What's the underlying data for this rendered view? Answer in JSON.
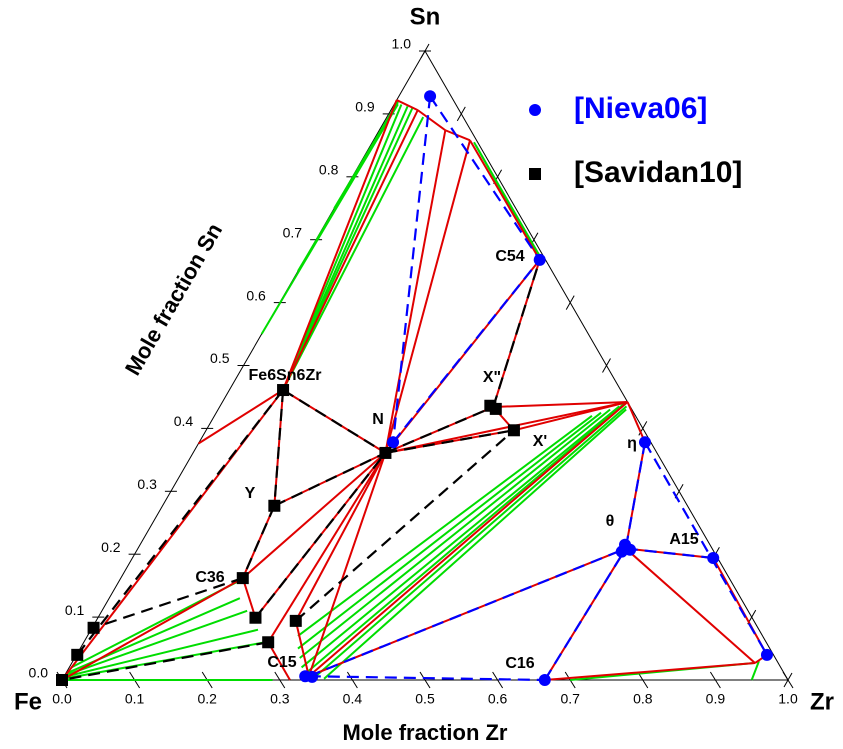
{
  "chart_data": {
    "type": "ternary",
    "corners": {
      "top": "Sn",
      "bottom_left": "Fe",
      "bottom_right": "Zr"
    },
    "xlabel": "Mole fraction Zr",
    "ylabel": "Mole fraction Sn",
    "ticks": [
      {
        "value": 0,
        "label": "0.0"
      },
      0.1,
      0.2,
      0.3,
      0.4,
      0.5,
      0.6,
      0.7,
      0.8,
      0.9,
      {
        "value": 1,
        "label": "1.0"
      }
    ],
    "series": [
      {
        "name": "[Nieva06]",
        "color": "#0000ff",
        "marker": "circle",
        "zr": [
          0.043,
          0.324,
          0.267,
          0.614,
          0.668,
          0.679,
          0.669,
          0.8,
          0.951,
          0.332,
          0.342,
          0.665
        ],
        "sn": [
          0.928,
          0.668,
          0.378,
          0.378,
          0.215,
          0.207,
          0.204,
          0.194,
          0.04,
          0.006,
          0.005,
          0
        ]
      },
      {
        "name": "[Savidan10]",
        "color": "#000000",
        "marker": "square",
        "zr": [
          0.074,
          0.265,
          0.372,
          0.382,
          0.424,
          0.154,
          0.168,
          0.217,
          0.275,
          0.254,
          0.002,
          0.001,
          0
        ],
        "sn": [
          0.461,
          0.361,
          0.436,
          0.431,
          0.397,
          0.277,
          0.162,
          0.099,
          0.094,
          0.06,
          0.083,
          0.04,
          0
        ]
      }
    ],
    "lines": [
      {
        "color": "#00dd00",
        "style": "solid",
        "segments": [
          [
            [
              0.074,
              0.461
            ],
            [
              0.01,
              0.915
            ]
          ],
          [
            [
              0.074,
              0.461
            ],
            [
              0.02,
              0.912
            ]
          ],
          [
            [
              0.074,
              0.461
            ],
            [
              0.028,
              0.909
            ]
          ],
          [
            [
              0.074,
              0.461
            ],
            [
              0.05,
              0.895
            ]
          ],
          [
            [
              0,
              0.55
            ],
            [
              0.005,
              0.915
            ]
          ],
          [
            [
              0,
              0.65
            ],
            [
              0.004,
              0.917
            ]
          ],
          [
            [
              0,
              0.75
            ],
            [
              0.003,
              0.92
            ]
          ],
          [
            [
              0.14,
              0.855
            ],
            [
              0.32,
              0.675
            ]
          ],
          [
            [
              0.145,
              0.85
            ],
            [
              0.323,
              0.67
            ]
          ],
          [
            [
              0.003,
              0.02
            ],
            [
              0.168,
              0.16
            ]
          ],
          [
            [
              0.003,
              0.012
            ],
            [
              0.18,
              0.13
            ]
          ],
          [
            [
              0.002,
              0.008
            ],
            [
              0.2,
              0.11
            ]
          ],
          [
            [
              0.001,
              0.005
            ],
            [
              0.23,
              0.08
            ]
          ],
          [
            [
              0.001,
              0.002
            ],
            [
              0.25,
              0.06
            ]
          ],
          [
            [
              0,
              0
            ],
            [
              0.29,
              0
            ]
          ],
          [
            [
              0.52,
              0.42
            ],
            [
              0.29,
              0.07
            ]
          ],
          [
            [
              0.53,
              0.425
            ],
            [
              0.3,
              0.05
            ]
          ],
          [
            [
              0.54,
              0.43
            ],
            [
              0.31,
              0.035
            ]
          ],
          [
            [
              0.55,
              0.435
            ],
            [
              0.32,
              0.02
            ]
          ],
          [
            [
              0.555,
              0.44
            ],
            [
              0.33,
              0.01
            ]
          ],
          [
            [
              0.56,
              0.435
            ],
            [
              0.345,
              0.003
            ]
          ],
          [
            [
              0.562,
              0.43
            ],
            [
              0.36,
              0.002
            ]
          ],
          [
            [
              0.94,
              0.027
            ],
            [
              0.7,
              0
            ]
          ],
          [
            [
              0.945,
              0.03
            ],
            [
              0.95,
              0
            ]
          ]
        ]
      },
      {
        "color": "#e00000",
        "style": "solid",
        "segments": [
          [
            [
              0.074,
              0.461
            ],
            [
              0.265,
              0.361
            ]
          ],
          [
            [
              0.074,
              0.461
            ],
            [
              0,
              0.376
            ]
          ],
          [
            [
              0.074,
              0.461
            ],
            [
              0.154,
              0.277
            ]
          ],
          [
            [
              0.074,
              0.461
            ],
            [
              0,
              0
            ]
          ],
          [
            [
              0.074,
              0.461
            ],
            [
              0,
              0.922
            ]
          ],
          [
            [
              0.074,
              0.461
            ],
            [
              0.037,
              0.906
            ]
          ],
          [
            [
              0,
              0.922
            ],
            [
              0.037,
              0.906
            ]
          ],
          [
            [
              0.037,
              0.906
            ],
            [
              0.091,
              0.874
            ]
          ],
          [
            [
              0.091,
              0.874
            ],
            [
              0.133,
              0.858
            ]
          ],
          [
            [
              0.091,
              0.874
            ],
            [
              0.265,
              0.361
            ]
          ],
          [
            [
              0.133,
              0.858
            ],
            [
              0.265,
              0.361
            ]
          ],
          [
            [
              0.133,
              0.858
            ],
            [
              0.324,
              0.668
            ]
          ],
          [
            [
              0.324,
              0.668
            ],
            [
              0.265,
              0.361
            ]
          ],
          [
            [
              0.324,
              0.668
            ],
            [
              0.377,
              0.434
            ]
          ],
          [
            [
              0.377,
              0.434
            ],
            [
              0.265,
              0.361
            ]
          ],
          [
            [
              0.377,
              0.434
            ],
            [
              0.558,
              0.442
            ]
          ],
          [
            [
              0.377,
              0.434
            ],
            [
              0.424,
              0.397
            ]
          ],
          [
            [
              0.424,
              0.397
            ],
            [
              0.265,
              0.361
            ]
          ],
          [
            [
              0.424,
              0.397
            ],
            [
              0.558,
              0.442
            ]
          ],
          [
            [
              0.265,
              0.361
            ],
            [
              0.558,
              0.442
            ]
          ],
          [
            [
              0.558,
              0.442
            ],
            [
              0.337,
              0.006
            ]
          ],
          [
            [
              0.558,
              0.442
            ],
            [
              0.614,
              0.378
            ]
          ],
          [
            [
              0.265,
              0.361
            ],
            [
              0.337,
              0.006
            ]
          ],
          [
            [
              0.265,
              0.361
            ],
            [
              0.275,
              0.094
            ]
          ],
          [
            [
              0.265,
              0.361
            ],
            [
              0.254,
              0.06
            ]
          ],
          [
            [
              0.265,
              0.361
            ],
            [
              0.217,
              0.099
            ]
          ],
          [
            [
              0.154,
              0.277
            ],
            [
              0.265,
              0.361
            ]
          ],
          [
            [
              0.154,
              0.277
            ],
            [
              0.168,
              0.162
            ]
          ],
          [
            [
              0.168,
              0.162
            ],
            [
              0.265,
              0.361
            ]
          ],
          [
            [
              0.168,
              0.162
            ],
            [
              0,
              0
            ]
          ],
          [
            [
              0.217,
              0.099
            ],
            [
              0.168,
              0.162
            ]
          ],
          [
            [
              0.254,
              0.06
            ],
            [
              0.314,
              0
            ]
          ],
          [
            [
              0.275,
              0.094
            ],
            [
              0.337,
              0.006
            ]
          ],
          [
            [
              0.614,
              0.378
            ],
            [
              0.672,
              0.209
            ]
          ],
          [
            [
              0.672,
              0.209
            ],
            [
              0.665,
              0
            ]
          ],
          [
            [
              0.672,
              0.209
            ],
            [
              0.337,
              0.006
            ]
          ],
          [
            [
              0.672,
              0.209
            ],
            [
              0.8,
              0.194
            ]
          ],
          [
            [
              0.672,
              0.209
            ],
            [
              0.941,
              0.027
            ]
          ],
          [
            [
              0.8,
              0.194
            ],
            [
              0.951,
              0.04
            ]
          ],
          [
            [
              0.665,
              0
            ],
            [
              0.941,
              0.027
            ]
          ],
          [
            [
              0.941,
              0.027
            ],
            [
              0.951,
              0.04
            ]
          ]
        ]
      },
      {
        "color": "#000000",
        "style": "dashed",
        "segments": [
          [
            [
              0.074,
              0.461
            ],
            [
              0.265,
              0.361
            ]
          ],
          [
            [
              0.074,
              0.461
            ],
            [
              0.154,
              0.277
            ]
          ],
          [
            [
              0.074,
              0.461
            ],
            [
              0.001,
              0.04
            ]
          ],
          [
            [
              0.154,
              0.277
            ],
            [
              0.168,
              0.162
            ]
          ],
          [
            [
              0.154,
              0.277
            ],
            [
              0.265,
              0.361
            ]
          ],
          [
            [
              0.168,
              0.162
            ],
            [
              0.002,
              0.083
            ]
          ],
          [
            [
              0.217,
              0.099
            ],
            [
              0.265,
              0.361
            ]
          ],
          [
            [
              0.275,
              0.094
            ],
            [
              0.424,
              0.397
            ]
          ],
          [
            [
              0.265,
              0.361
            ],
            [
              0.377,
              0.434
            ]
          ],
          [
            [
              0.377,
              0.434
            ],
            [
              0.324,
              0.668
            ]
          ],
          [
            [
              0.265,
              0.361
            ],
            [
              0.424,
              0.397
            ]
          ],
          [
            [
              0.254,
              0.06
            ],
            [
              0,
              0
            ]
          ]
        ]
      },
      {
        "color": "#0000ff",
        "style": "dashed",
        "segments": [
          [
            [
              0.043,
              0.928
            ],
            [
              0.267,
              0.378
            ]
          ],
          [
            [
              0.043,
              0.928
            ],
            [
              0.324,
              0.668
            ]
          ],
          [
            [
              0.267,
              0.378
            ],
            [
              0.324,
              0.668
            ]
          ],
          [
            [
              0.337,
              0.006
            ],
            [
              0.665,
              0
            ]
          ],
          [
            [
              0.337,
              0.006
            ],
            [
              0.672,
              0.209
            ]
          ],
          [
            [
              0.614,
              0.378
            ],
            [
              0.672,
              0.209
            ]
          ],
          [
            [
              0.614,
              0.378
            ],
            [
              0.951,
              0.04
            ]
          ],
          [
            [
              0.672,
              0.209
            ],
            [
              0.8,
              0.194
            ]
          ],
          [
            [
              0.665,
              0
            ],
            [
              0.672,
              0.209
            ]
          ]
        ]
      }
    ],
    "annotations": [
      "Fe6Sn6Zr",
      "N",
      "X\"",
      "X'",
      "C54",
      "Y",
      "C36",
      "C15",
      "C16",
      "θ",
      "η",
      "A15"
    ]
  }
}
